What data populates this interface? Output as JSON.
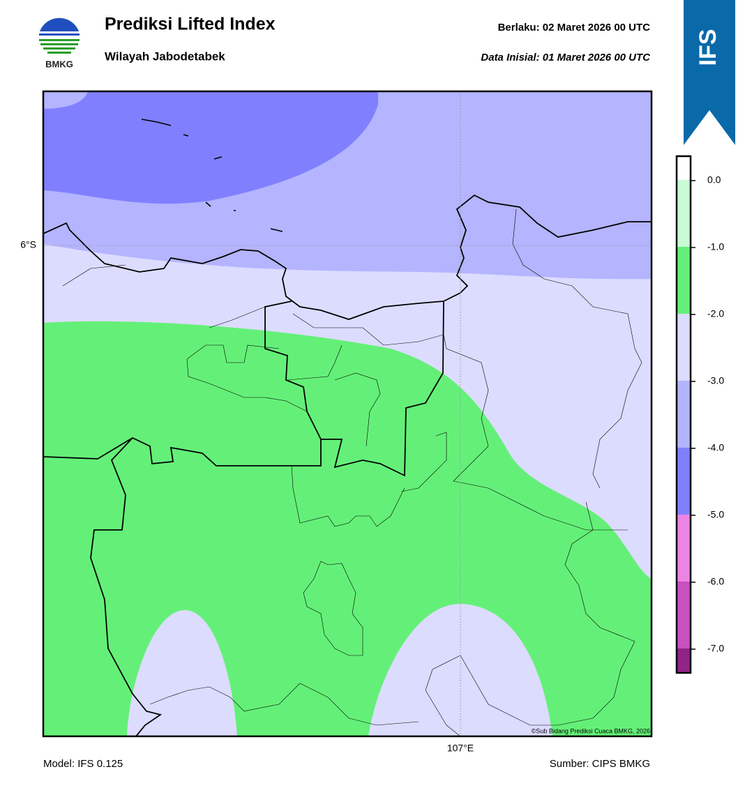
{
  "header": {
    "title": "Prediksi Lifted Index",
    "subtitle": "Wilayah Jabodetabek",
    "valid": "Berlaku:  02 Maret 2026 00 UTC",
    "initial": "Data Inisial:  01 Maret 2026 00 UTC"
  },
  "logo": {
    "label": "BMKG"
  },
  "badge": {
    "label": "IFS"
  },
  "map": {
    "lat_label": "6°S",
    "lon_label": "107°E",
    "credit": "©Sub Bidang Prediksi Cuaca BMKG, 2026"
  },
  "colorbar": {
    "labels": [
      "0.0",
      "-1.0",
      "-2.0",
      "-3.0",
      "-4.0",
      "-5.0",
      "-6.0",
      "-7.0"
    ]
  },
  "footer": {
    "model": "Model: IFS 0.125",
    "source": "Sumber: CIPS BMKG"
  }
}
